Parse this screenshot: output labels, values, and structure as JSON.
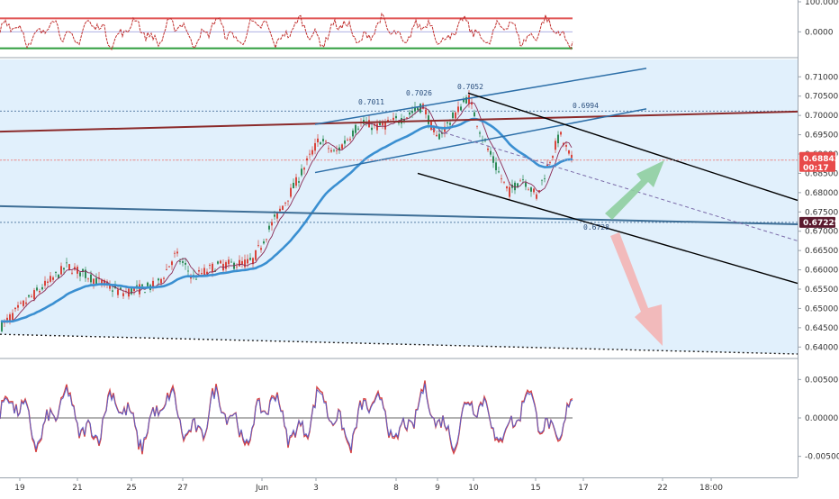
{
  "chart_data": [
    {
      "type": "line",
      "panel": "top-oscillator",
      "y_ticks": [
        "100.0000",
        "0.0000"
      ],
      "ylim": [
        -80,
        100
      ],
      "upper_band": 45,
      "lower_band": -55,
      "colors": {
        "line": "#c0302f",
        "mid": "#7b7fd4",
        "upper": "#e05454",
        "lower": "#2f9e3e"
      }
    },
    {
      "type": "line",
      "panel": "price",
      "ylim": [
        0.6375,
        0.7145
      ],
      "y_ticks": [
        "0.71000",
        "0.70500",
        "0.70000",
        "0.69500",
        "0.69000",
        "0.68500",
        "0.68000",
        "0.67500",
        "0.67000",
        "0.66500",
        "0.66000",
        "0.65500",
        "0.65000",
        "0.64500",
        "0.64000"
      ],
      "x_ticks": [
        "19",
        "21",
        "25",
        "27",
        "Jun",
        "3",
        "8",
        "9",
        "10",
        "15",
        "17",
        "22",
        "18:00"
      ],
      "annotations": [
        {
          "text": "0.7011",
          "value": 0.7011
        },
        {
          "text": "0.7026",
          "value": 0.7026
        },
        {
          "text": "0.7052",
          "value": 0.7052
        },
        {
          "text": "0.6994",
          "value": 0.6994
        },
        {
          "text": "0.6728",
          "value": 0.6728
        }
      ],
      "current_price": {
        "text": "0.68842",
        "value": 0.68842,
        "timer": "00:17",
        "color": "#e84a4a"
      },
      "support_price": {
        "text": "0.67229",
        "value": 0.67229,
        "color": "#5b1a2e"
      },
      "dotted_levels": [
        0.7011,
        0.68842,
        0.67229
      ],
      "colors": {
        "bg_band": "#dcedfb",
        "ema": "#3a8fd1",
        "candle_up": "#2e8b57",
        "candle_down": "#d9453c",
        "wma": "#8a2a55"
      }
    },
    {
      "type": "line",
      "panel": "bottom-oscillator",
      "y_ticks": [
        "0.00500",
        "0.00000",
        "-0.00500"
      ],
      "ylim": [
        -0.0075,
        0.0075
      ],
      "colors": {
        "line1": "#d64040",
        "line2": "#5b5fc7"
      }
    }
  ]
}
